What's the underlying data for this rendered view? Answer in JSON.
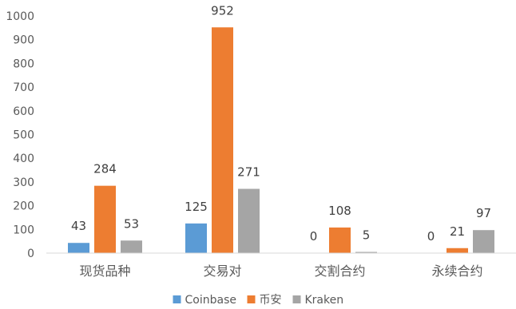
{
  "chart_data": {
    "type": "bar",
    "categories": [
      "现货品种",
      "交易对",
      "交割合约",
      "永续合约"
    ],
    "series": [
      {
        "name": "Coinbase",
        "values": [
          43,
          125,
          0,
          0
        ],
        "color": "#5b9bd5"
      },
      {
        "name": "币安",
        "values": [
          284,
          952,
          108,
          21
        ],
        "color": "#ed7d31"
      },
      {
        "name": "Kraken",
        "values": [
          53,
          271,
          5,
          97
        ],
        "color": "#a5a5a5"
      }
    ],
    "y_ticks": [
      "0",
      "100",
      "200",
      "300",
      "400",
      "500",
      "600",
      "700",
      "800",
      "900",
      "1000"
    ],
    "ylim": [
      0,
      1000
    ],
    "title": "",
    "xlabel": "",
    "ylabel": "",
    "grid": false,
    "legend_position": "bottom",
    "data_labels": true
  }
}
